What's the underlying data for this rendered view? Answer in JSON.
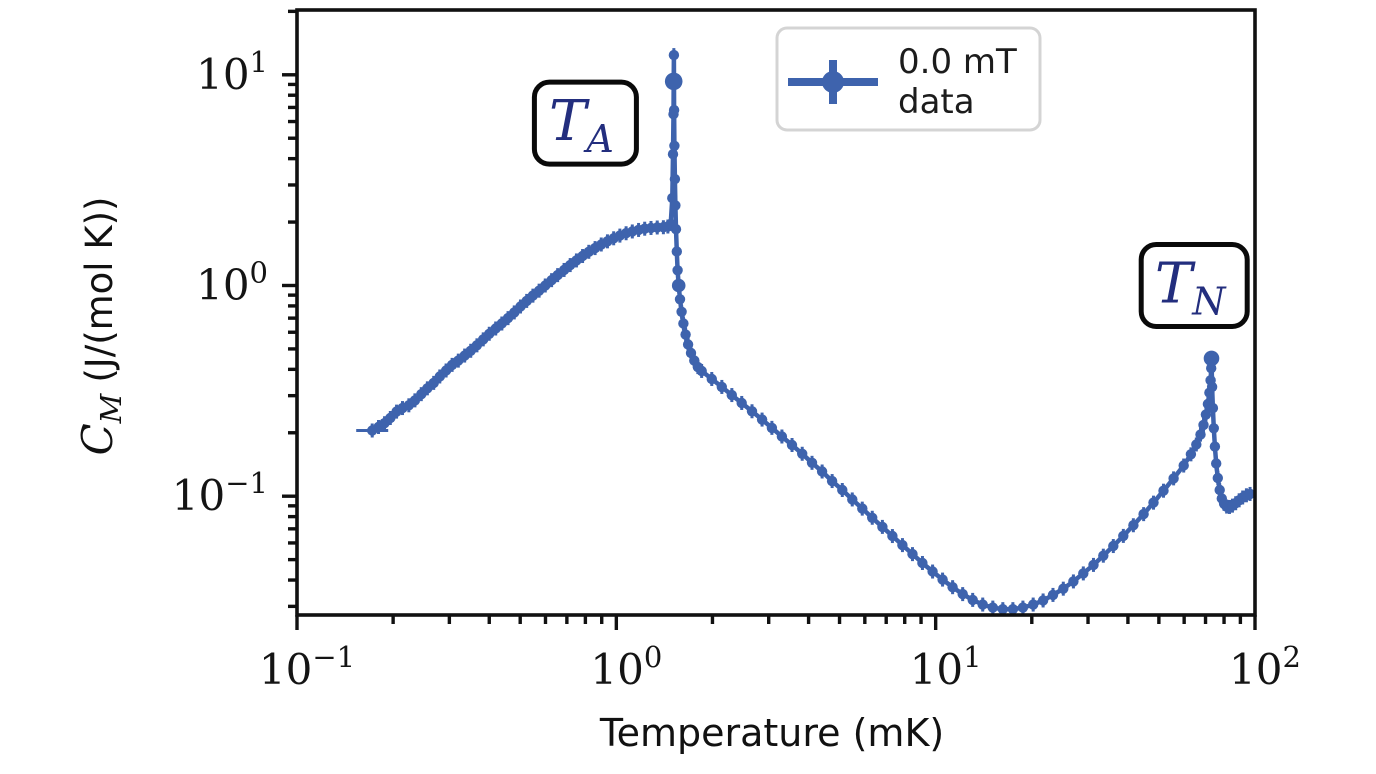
{
  "window": {
    "background": "#ffffff"
  },
  "colors": {
    "data": "#3E63AD",
    "annotation_text": "#232E7E",
    "annotation_border": "#0a0a0a",
    "axis": "#111111",
    "legend_border": "#d4d4d4",
    "legend_fill": "#ffffff"
  },
  "chart_data": {
    "type": "line",
    "title": "",
    "xlabel": "Temperature (mK)",
    "ylabel": "C_M (J/(mol K))",
    "ylabel_parts": {
      "symbol": "C",
      "subscript": "M",
      "units": "(J/(mol K))"
    },
    "xscale": "log",
    "yscale": "log",
    "xlim": [
      0.1,
      100
    ],
    "ylim": [
      0.0273,
      20.3
    ],
    "grid": false,
    "x_tick_labels": [
      {
        "value": 0.1,
        "base": "10",
        "exp": "−1"
      },
      {
        "value": 1,
        "base": "10",
        "exp": "0"
      },
      {
        "value": 10,
        "base": "10",
        "exp": "1"
      },
      {
        "value": 100,
        "base": "10",
        "exp": "2"
      }
    ],
    "y_tick_labels": [
      {
        "value": 10,
        "base": "10",
        "exp": "1"
      },
      {
        "value": 1,
        "base": "10",
        "exp": "0"
      },
      {
        "value": 0.1,
        "base": "10",
        "exp": "−1"
      }
    ],
    "legend": {
      "position": "upper center",
      "entries": [
        {
          "name": "0.0 mT data",
          "line1": "0.0 mT",
          "line2": "data",
          "marker": "errorbar-circle",
          "color": "#3E63AD"
        }
      ]
    },
    "annotations": [
      {
        "symbol": "T",
        "subscript": "A",
        "x": 0.8,
        "y": 5.9
      },
      {
        "symbol": "T",
        "subscript": "N",
        "x": 64.5,
        "y": 1.0
      }
    ],
    "series": [
      {
        "name": "0.0 mT data",
        "color": "#3E63AD",
        "points": [
          [
            0.172,
            0.205
          ],
          [
            0.18,
            0.213
          ],
          [
            0.188,
            0.222
          ],
          [
            0.196,
            0.235
          ],
          [
            0.205,
            0.252
          ],
          [
            0.214,
            0.262
          ],
          [
            0.224,
            0.27
          ],
          [
            0.234,
            0.285
          ],
          [
            0.245,
            0.305
          ],
          [
            0.256,
            0.325
          ],
          [
            0.268,
            0.345
          ],
          [
            0.28,
            0.37
          ],
          [
            0.293,
            0.395
          ],
          [
            0.306,
            0.42
          ],
          [
            0.32,
            0.44
          ],
          [
            0.335,
            0.465
          ],
          [
            0.35,
            0.49
          ],
          [
            0.366,
            0.52
          ],
          [
            0.383,
            0.555
          ],
          [
            0.4,
            0.59
          ],
          [
            0.419,
            0.625
          ],
          [
            0.438,
            0.66
          ],
          [
            0.458,
            0.7
          ],
          [
            0.479,
            0.745
          ],
          [
            0.501,
            0.795
          ],
          [
            0.524,
            0.845
          ],
          [
            0.548,
            0.895
          ],
          [
            0.573,
            0.945
          ],
          [
            0.599,
            1.0
          ],
          [
            0.627,
            1.06
          ],
          [
            0.655,
            1.12
          ],
          [
            0.686,
            1.185
          ],
          [
            0.717,
            1.25
          ],
          [
            0.75,
            1.315
          ],
          [
            0.784,
            1.38
          ],
          [
            0.82,
            1.445
          ],
          [
            0.858,
            1.505
          ],
          [
            0.897,
            1.565
          ],
          [
            0.938,
            1.62
          ],
          [
            0.981,
            1.675
          ],
          [
            1.026,
            1.725
          ],
          [
            1.073,
            1.77
          ],
          [
            1.122,
            1.805
          ],
          [
            1.174,
            1.835
          ],
          [
            1.227,
            1.86
          ],
          [
            1.284,
            1.875
          ],
          [
            1.343,
            1.885
          ],
          [
            1.404,
            1.89
          ],
          [
            1.45,
            1.905
          ],
          [
            1.48,
            1.96
          ],
          [
            1.497,
            2.6
          ],
          [
            1.505,
            4.2
          ],
          [
            1.51,
            6.5
          ],
          [
            1.512,
            9.3,
            1.7
          ],
          [
            1.514,
            12.4
          ],
          [
            1.517,
            6.8
          ],
          [
            1.52,
            4.6
          ],
          [
            1.525,
            3.2
          ],
          [
            1.531,
            2.4
          ],
          [
            1.538,
            1.85
          ],
          [
            1.546,
            1.45
          ],
          [
            1.556,
            1.18
          ],
          [
            1.568,
            1.0,
            1.3
          ],
          [
            1.583,
            0.86
          ],
          [
            1.601,
            0.75
          ],
          [
            1.622,
            0.66
          ],
          [
            1.648,
            0.585
          ],
          [
            1.678,
            0.525
          ],
          [
            1.713,
            0.478
          ],
          [
            1.754,
            0.44
          ],
          [
            1.8,
            0.41
          ],
          [
            1.85,
            0.393
          ],
          [
            1.99,
            0.36
          ],
          [
            2.14,
            0.33
          ],
          [
            2.3,
            0.302
          ],
          [
            2.47,
            0.277
          ],
          [
            2.66,
            0.253
          ],
          [
            2.86,
            0.231
          ],
          [
            3.07,
            0.211
          ],
          [
            3.3,
            0.192
          ],
          [
            3.55,
            0.175
          ],
          [
            3.82,
            0.159
          ],
          [
            4.1,
            0.144
          ],
          [
            4.41,
            0.131
          ],
          [
            4.74,
            0.118
          ],
          [
            5.1,
            0.107
          ],
          [
            5.48,
            0.0965
          ],
          [
            5.89,
            0.0873
          ],
          [
            6.33,
            0.079
          ],
          [
            6.81,
            0.0715
          ],
          [
            7.32,
            0.0647
          ],
          [
            7.87,
            0.0586
          ],
          [
            8.46,
            0.0531
          ],
          [
            9.09,
            0.0482
          ],
          [
            9.78,
            0.0439
          ],
          [
            10.51,
            0.0402
          ],
          [
            11.3,
            0.037
          ],
          [
            12.15,
            0.0343
          ],
          [
            13.06,
            0.0322
          ],
          [
            14.04,
            0.0306
          ],
          [
            15.1,
            0.0296
          ],
          [
            16.23,
            0.0291
          ],
          [
            17.45,
            0.0291
          ],
          [
            18.76,
            0.0296
          ],
          [
            20.2,
            0.0306
          ],
          [
            21.7,
            0.032
          ],
          [
            23.3,
            0.034
          ],
          [
            25.1,
            0.0364
          ],
          [
            27.0,
            0.0394
          ],
          [
            29.0,
            0.043
          ],
          [
            31.2,
            0.0472
          ],
          [
            33.5,
            0.0522
          ],
          [
            36.0,
            0.058
          ],
          [
            38.7,
            0.0648
          ],
          [
            41.6,
            0.0728
          ],
          [
            44.8,
            0.0822
          ],
          [
            48.1,
            0.0932
          ],
          [
            51.7,
            0.1062
          ],
          [
            55.6,
            0.1215
          ],
          [
            59.8,
            0.1398
          ],
          [
            63.0,
            0.158
          ],
          [
            65.5,
            0.176
          ],
          [
            67.5,
            0.196
          ],
          [
            69.0,
            0.218
          ],
          [
            70.2,
            0.244
          ],
          [
            71.2,
            0.274
          ],
          [
            72.0,
            0.31
          ],
          [
            72.6,
            0.355
          ],
          [
            72.9,
            0.405
          ],
          [
            73.1,
            0.451,
            1.5
          ],
          [
            73.4,
            0.33
          ],
          [
            73.8,
            0.262
          ],
          [
            74.3,
            0.21
          ],
          [
            74.9,
            0.172
          ],
          [
            75.6,
            0.143
          ],
          [
            76.5,
            0.122
          ],
          [
            77.5,
            0.107
          ],
          [
            78.7,
            0.0975
          ],
          [
            80.0,
            0.092
          ],
          [
            81.5,
            0.0893
          ],
          [
            83.2,
            0.0889
          ],
          [
            85.0,
            0.0902
          ],
          [
            87.0,
            0.0926
          ],
          [
            89.2,
            0.0956
          ],
          [
            91.5,
            0.0986
          ],
          [
            94.0,
            0.101
          ],
          [
            96.5,
            0.1025
          ]
        ]
      }
    ]
  }
}
